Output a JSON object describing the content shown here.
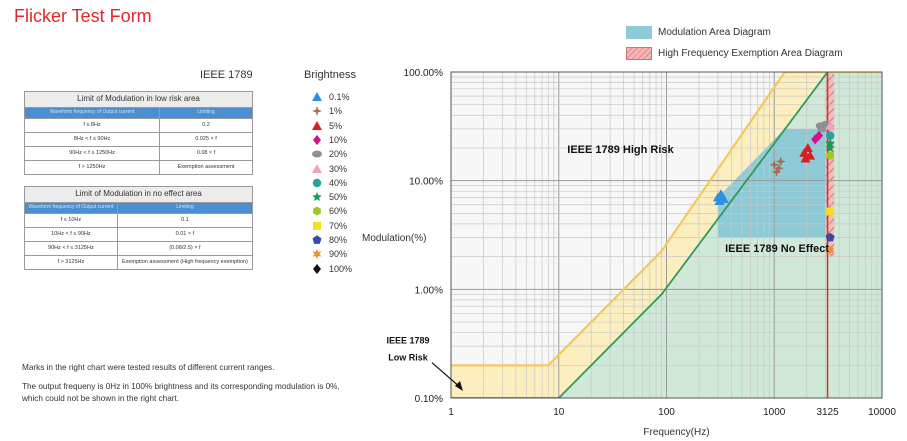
{
  "page": {
    "title": "Flicker Test Form",
    "standard": "IEEE 1789",
    "brightness_title": "Brightness",
    "notes": [
      "Marks in the right chart were tested results of different current ranges.",
      "The output frequeny is 0Hz in 100% brightness and its corresponding modulation is 0%, which could not be shown in the right chart."
    ]
  },
  "table_low": {
    "title": "Limit of Modulation in low risk area",
    "col1": "Waveform frequency of Output current",
    "col2": "Limiting",
    "rows": [
      [
        "f ≤ 8Hz",
        "0.2"
      ],
      [
        "8Hz < f ≤ 90Hz",
        "0.025 × f"
      ],
      [
        "90Hz < f ≤ 1250Hz",
        "0.08 × f"
      ],
      [
        "f > 1250Hz",
        "Exemption assessment"
      ]
    ]
  },
  "table_noeffect": {
    "title": "Limit of Modulation in no effect area",
    "col1": "Waveform frequency of Output current",
    "col2": "Limiting",
    "rows": [
      [
        "f ≤ 10Hz",
        "0.1"
      ],
      [
        "10Hz < f ≤ 90Hz",
        "0.01 × f"
      ],
      [
        "90Hz < f ≤ 3125Hz",
        "(0.08/2.5) × f"
      ],
      [
        "f > 3125Hz",
        "Exemption assessment (High frequency exemption)"
      ]
    ]
  },
  "brightness_legend": [
    {
      "label": "0.1%",
      "shape": "triangle-up",
      "color": "#2e8fe0"
    },
    {
      "label": "1%",
      "shape": "star4",
      "color": "#a07050"
    },
    {
      "label": "5%",
      "shape": "triangle-up",
      "color": "#d42020"
    },
    {
      "label": "10%",
      "shape": "diamond",
      "color": "#d4108a"
    },
    {
      "label": "20%",
      "shape": "ellipse",
      "color": "#909090"
    },
    {
      "label": "30%",
      "shape": "triangle-up",
      "color": "#f0a0c0"
    },
    {
      "label": "40%",
      "shape": "circle",
      "color": "#2aa0a0"
    },
    {
      "label": "50%",
      "shape": "star5",
      "color": "#10a050"
    },
    {
      "label": "60%",
      "shape": "hexagon",
      "color": "#a0c820"
    },
    {
      "label": "70%",
      "shape": "square",
      "color": "#f4e020"
    },
    {
      "label": "80%",
      "shape": "pentagon",
      "color": "#3a4aa0"
    },
    {
      "label": "90%",
      "shape": "star6",
      "color": "#f09030"
    },
    {
      "label": "100%",
      "shape": "diamond",
      "color": "#111111"
    }
  ],
  "area_legend": [
    {
      "label": "Modulation Area Diagram",
      "kind": "modulation"
    },
    {
      "label": "High Frequency Exemption Area Diagram",
      "kind": "hf"
    }
  ],
  "chart_data": {
    "type": "scatter",
    "xscale": "log",
    "yscale": "log",
    "xlabel": "Frequency(Hz)",
    "ylabel": "Modulation(%)",
    "xlim": [
      1,
      10000
    ],
    "ylim": [
      0.1,
      100
    ],
    "x_ticks": [
      "1",
      "10",
      "100",
      "1000",
      "3125",
      "10000"
    ],
    "y_ticks": [
      "0.10%",
      "1.00%",
      "10.00%",
      "100.00%"
    ],
    "x_tick_values": [
      1,
      10,
      100,
      1000,
      3125,
      10000
    ],
    "y_tick_values": [
      0.1,
      1,
      10,
      100
    ],
    "highlight_x": 3125,
    "highlight_color": "#d03030",
    "low_risk_boundary": [
      [
        1,
        0.2
      ],
      [
        8,
        0.2
      ],
      [
        90,
        2.25
      ],
      [
        1250,
        100
      ]
    ],
    "no_effect_boundary": [
      [
        1,
        0.1
      ],
      [
        10,
        0.1
      ],
      [
        90,
        0.9
      ],
      [
        3125,
        100
      ]
    ],
    "modulation_area": [
      [
        300,
        3
      ],
      [
        300,
        7
      ],
      [
        1250,
        30
      ],
      [
        3125,
        30
      ],
      [
        3125,
        3
      ]
    ],
    "hf_exemption_area": [
      [
        3000,
        2
      ],
      [
        3600,
        100
      ]
    ],
    "annotations": [
      {
        "text": "IEEE 1789 High Risk",
        "x": 12,
        "y": 18
      },
      {
        "text": "IEEE 1789 No Effect",
        "x": 350,
        "y": 2.2
      },
      {
        "text": "IEEE 1789",
        "x": 1,
        "y": 0.33
      },
      {
        "text": "Low Risk",
        "x": 1,
        "y": 0.23
      }
    ],
    "series": [
      {
        "name": "0.1%",
        "points": [
          [
            300,
            7
          ],
          [
            320,
            7.5
          ],
          [
            340,
            6.8
          ],
          [
            310,
            6.5
          ]
        ]
      },
      {
        "name": "1%",
        "points": [
          [
            1000,
            14
          ],
          [
            1100,
            13
          ],
          [
            1050,
            12
          ],
          [
            1150,
            15
          ]
        ]
      },
      {
        "name": "5%",
        "points": [
          [
            1900,
            18
          ],
          [
            2050,
            20
          ],
          [
            2150,
            17
          ],
          [
            1950,
            16
          ]
        ]
      },
      {
        "name": "10%",
        "points": [
          [
            2400,
            24
          ],
          [
            2600,
            26
          ]
        ]
      },
      {
        "name": "20%",
        "points": [
          [
            2700,
            32
          ],
          [
            2800,
            30
          ],
          [
            3000,
            33
          ]
        ]
      },
      {
        "name": "30%",
        "points": [
          [
            3300,
            32
          ]
        ]
      },
      {
        "name": "40%",
        "points": [
          [
            3300,
            26
          ]
        ]
      },
      {
        "name": "50%",
        "points": [
          [
            3300,
            22
          ],
          [
            3300,
            20
          ]
        ]
      },
      {
        "name": "60%",
        "points": [
          [
            3300,
            17
          ]
        ]
      },
      {
        "name": "70%",
        "points": [
          [
            3300,
            5.2
          ]
        ]
      },
      {
        "name": "80%",
        "points": [
          [
            3300,
            3
          ]
        ]
      },
      {
        "name": "90%",
        "points": [
          [
            3300,
            2.3
          ]
        ]
      }
    ],
    "legend_position": "top-right"
  }
}
